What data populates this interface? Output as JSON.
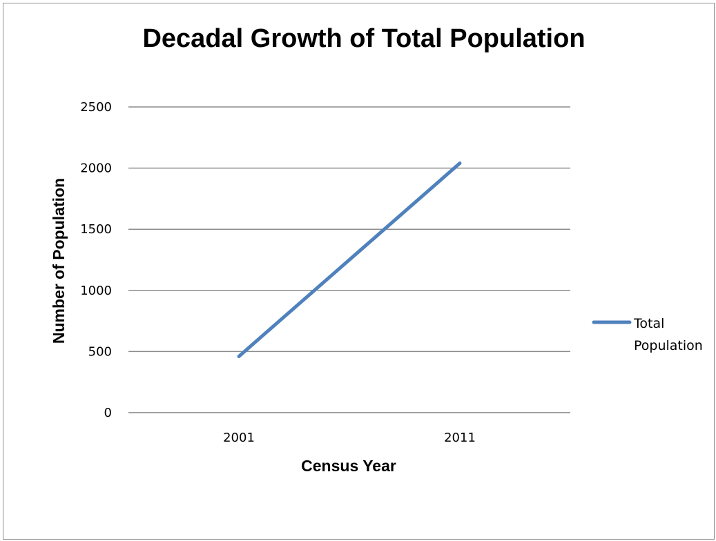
{
  "chart_data": {
    "type": "line",
    "title": "Decadal Growth of Total Population",
    "xlabel": "Census Year",
    "ylabel": "Number of Population",
    "categories": [
      "2001",
      "2011"
    ],
    "series": [
      {
        "name": "Total Population",
        "values": [
          460,
          2040
        ],
        "color": "#4f81bd"
      }
    ],
    "ylim": [
      0,
      2500
    ],
    "yticks": [
      0,
      500,
      1000,
      1500,
      2000,
      2500
    ],
    "grid": true,
    "legend": {
      "placement": "right",
      "lines": [
        "Total",
        "Population"
      ]
    }
  }
}
